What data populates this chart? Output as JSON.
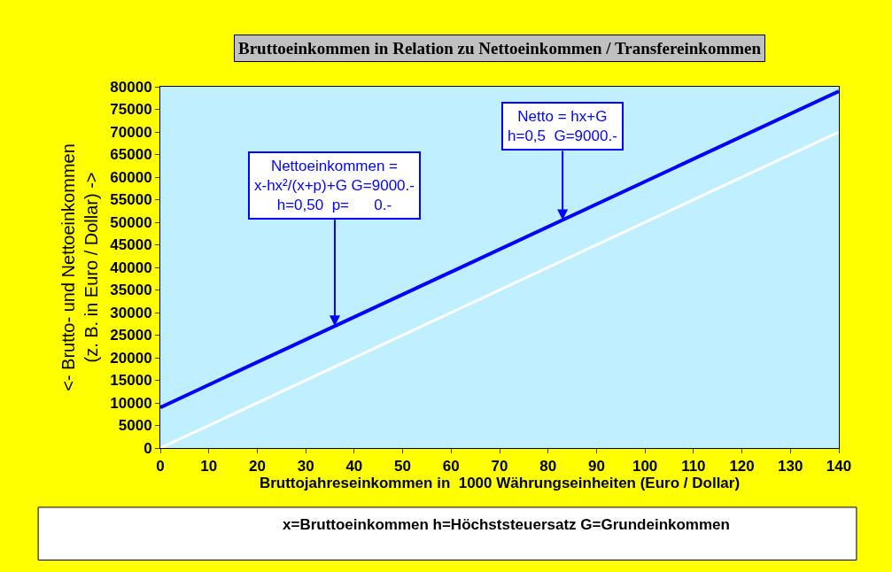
{
  "chart_data": {
    "type": "line",
    "title": "Bruttoeinkommen in Relation zu Nettoeinkommen / Transfereinkommen",
    "xlabel": "Bruttojahreseinkommen in  1000 Währungseinheiten (Euro / Dollar)",
    "ylabel": "<- Brutto- und Nettoeinkommen\n(z. B. in Euro / Dollar) ->",
    "x": [
      0,
      140
    ],
    "series": [
      {
        "color": "#0000ff",
        "values": [
          9000,
          79000
        ]
      },
      {
        "color": "#ffffff",
        "values": [
          0,
          70000
        ]
      }
    ],
    "xlim": [
      0,
      140
    ],
    "xticks": [
      0,
      10,
      20,
      30,
      40,
      50,
      60,
      70,
      80,
      90,
      100,
      110,
      120,
      130,
      140
    ],
    "ylim": [
      0,
      80000
    ],
    "yticks": [
      0,
      5000,
      10000,
      15000,
      20000,
      25000,
      30000,
      35000,
      40000,
      45000,
      50000,
      55000,
      60000,
      65000,
      70000,
      75000,
      80000
    ],
    "grid": false,
    "marker": "none",
    "line_style": "solid",
    "annotations": [
      {
        "text": "Nettoeinkommen =\nx-hx²/(x+p)+G G=9000.-\nh=0,50  p=      0.-",
        "x": 36,
        "y": 27000
      },
      {
        "text": "Netto = hx+G\nh=0,5  G=9000.-",
        "x": 83,
        "y": 50500
      },
      "x=Bruttoeinkommen h=Höchststeuersatz G=Grundeinkommen"
    ]
  }
}
